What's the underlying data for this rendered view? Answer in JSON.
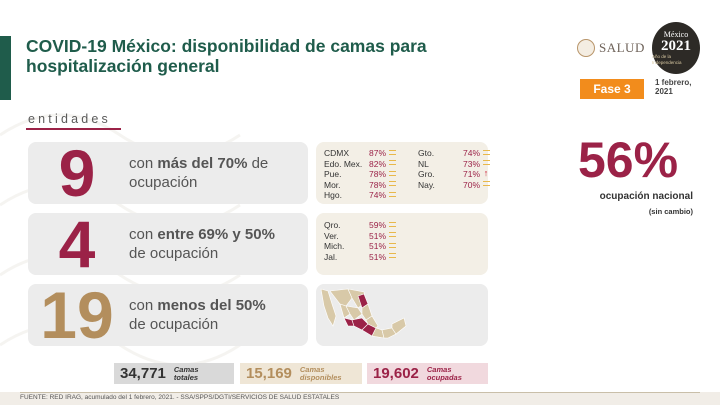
{
  "header": {
    "title": "COVID-19 México: disponibilidad de camas para hospitalización general",
    "logo_salud": "SALUD",
    "logo_2021_top": "México",
    "logo_2021_year": "2021",
    "logo_2021_bottom": "Año de la Independencia",
    "fase_label": "Fase 3",
    "date_line1": "1 febrero,",
    "date_line2": "2021"
  },
  "section_label": "entidades",
  "rows": [
    {
      "count": "9",
      "pre": "con ",
      "bold": "más del 70%",
      "post": " de",
      "line2": "ocupación"
    },
    {
      "count": "4",
      "pre": "con ",
      "bold": "entre 69% y 50%",
      "post": "",
      "line2": "de ocupación"
    },
    {
      "count": "19",
      "pre": "con ",
      "bold": "menos del 50%",
      "post": "",
      "line2": "de ocupación"
    }
  ],
  "panel_high_left": [
    {
      "name": "CDMX",
      "pct": "87%",
      "trend": "equal"
    },
    {
      "name": "Edo. Mex.",
      "pct": "82%",
      "trend": "equal"
    },
    {
      "name": "Pue.",
      "pct": "78%",
      "trend": "equal"
    },
    {
      "name": "Mor.",
      "pct": "78%",
      "trend": "equal"
    },
    {
      "name": "Hgo.",
      "pct": "74%",
      "trend": "equal"
    }
  ],
  "panel_high_right": [
    {
      "name": "Gto.",
      "pct": "74%",
      "trend": "equal"
    },
    {
      "name": "NL",
      "pct": "73%",
      "trend": "equal"
    },
    {
      "name": "Gro.",
      "pct": "71%",
      "trend": "up"
    },
    {
      "name": "Nay.",
      "pct": "70%",
      "trend": "equal"
    }
  ],
  "panel_mid": [
    {
      "name": "Qro.",
      "pct": "59%",
      "trend": "equal"
    },
    {
      "name": "Ver.",
      "pct": "51%",
      "trend": "equal"
    },
    {
      "name": "Mich.",
      "pct": "51%",
      "trend": "equal"
    },
    {
      "name": "Jal.",
      "pct": "51%",
      "trend": "equal"
    }
  ],
  "national": {
    "pct": "56%",
    "label": "ocupación nacional",
    "sub": "(sin cambio)"
  },
  "stats": [
    {
      "num": "34,771",
      "cap1": "Camas",
      "cap2": "totales"
    },
    {
      "num": "15,169",
      "cap1": "Camas",
      "cap2": "disponibles"
    },
    {
      "num": "19,602",
      "cap1": "Camas",
      "cap2": "ocupadas"
    }
  ],
  "footer": "FUENTE: RED IRAG, acumulado del 1 febrero, 2021. -  SSA/SPPS/DGTI/SERVICIOS DE SALUD ESTATALES",
  "colors": {
    "green": "#1f5c4b",
    "wine": "#9b2247",
    "gold": "#b38e5d",
    "orange": "#f28c1c"
  }
}
